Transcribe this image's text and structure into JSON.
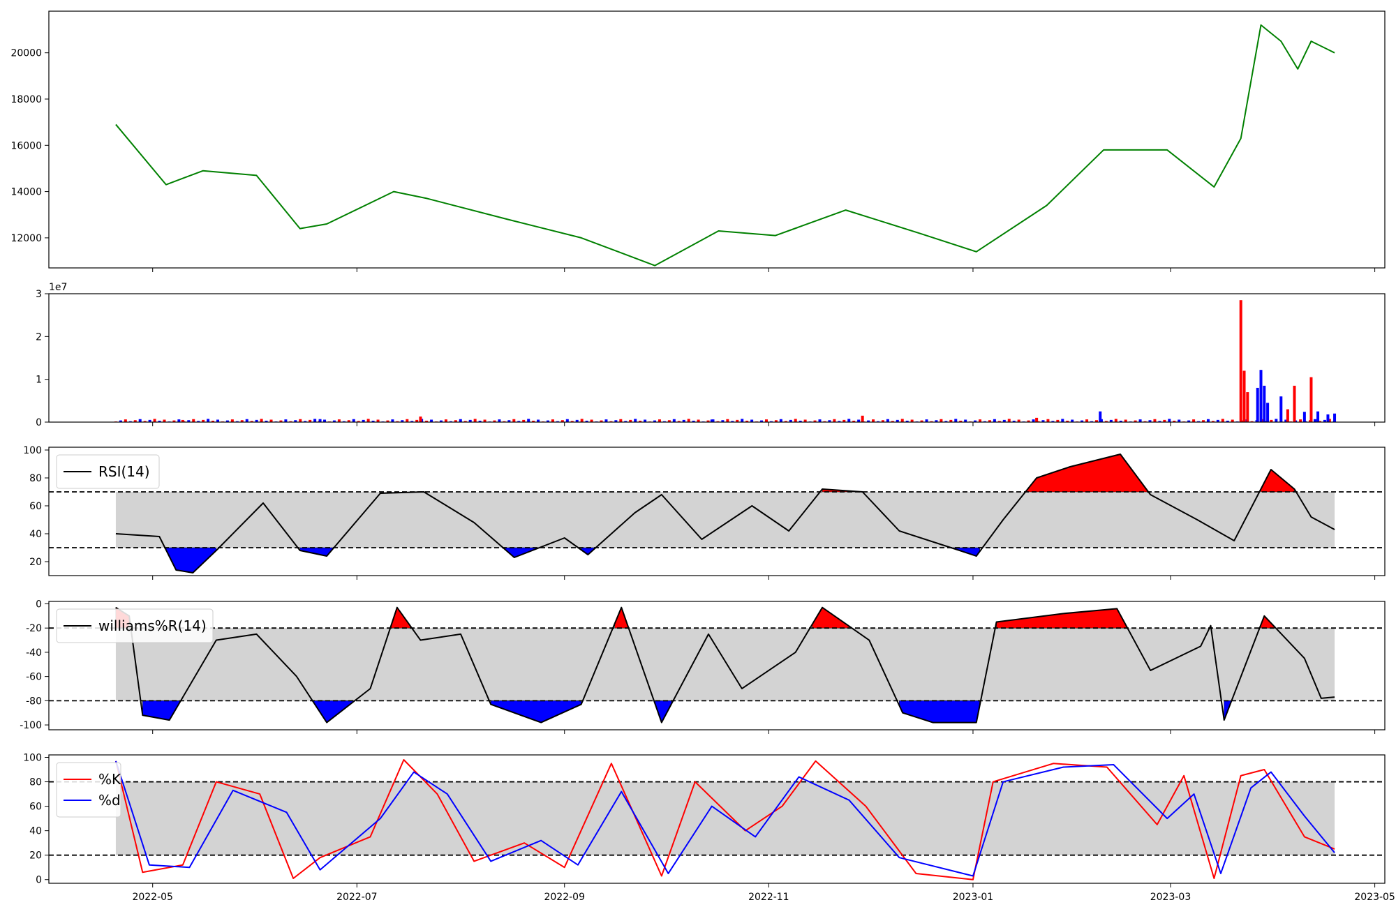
{
  "chart_data": [
    {
      "type": "line",
      "title": "",
      "xlabel": "",
      "ylabel": "",
      "ylim": [
        10700,
        21800
      ],
      "yticks": [
        12000,
        14000,
        16000,
        18000,
        20000
      ],
      "series": [
        {
          "color": "#008000",
          "x": [
            "2022-04-20",
            "2022-05-05",
            "2022-05-16",
            "2022-06-01",
            "2022-06-14",
            "2022-06-22",
            "2022-07-12",
            "2022-07-22",
            "2022-08-15",
            "2022-09-06",
            "2022-09-28",
            "2022-10-17",
            "2022-11-03",
            "2022-11-24",
            "2022-12-16",
            "2023-01-02",
            "2023-01-23",
            "2023-02-09",
            "2023-02-28",
            "2023-03-14",
            "2023-03-22",
            "2023-03-28",
            "2023-04-03",
            "2023-04-08",
            "2023-04-12",
            "2023-04-19"
          ],
          "values": [
            16900,
            14300,
            14900,
            14700,
            12400,
            12600,
            14000,
            13700,
            12800,
            12000,
            10800,
            12300,
            12100,
            13200,
            12200,
            11400,
            13400,
            15800,
            15800,
            14200,
            16300,
            21200,
            20500,
            19300,
            20500,
            20000
          ]
        }
      ]
    },
    {
      "type": "bar",
      "title": "",
      "xlabel": "",
      "ylabel": "",
      "offset_label": "1e7",
      "ylim": [
        0,
        30000000.0
      ],
      "yticks": [
        0,
        1,
        2,
        3
      ],
      "up_color": "#ff0000",
      "down_color": "#0000ff",
      "x": [
        "2022-05-10",
        "2022-06-20",
        "2022-07-20",
        "2022-10-15",
        "2022-11-29",
        "2023-01-20",
        "2023-02-08",
        "2023-03-22",
        "2023-03-23",
        "2023-03-24",
        "2023-03-27",
        "2023-03-28",
        "2023-03-29",
        "2023-03-30",
        "2023-04-03",
        "2023-04-05",
        "2023-04-07",
        "2023-04-10",
        "2023-04-12",
        "2023-04-14",
        "2023-04-17",
        "2023-04-19"
      ],
      "values": [
        500000,
        700000,
        1300000,
        600000,
        1500000,
        1000000,
        2500000,
        28500000,
        12000000,
        7000000,
        8000000,
        12200000,
        8500000,
        4500000,
        6000000,
        3000000,
        8500000,
        2400000,
        10500000,
        2500000,
        1800000,
        2000000
      ],
      "colors": [
        "red",
        "blue",
        "red",
        "blue",
        "red",
        "red",
        "blue",
        "red",
        "red",
        "red",
        "blue",
        "blue",
        "blue",
        "blue",
        "blue",
        "red",
        "red",
        "blue",
        "red",
        "blue",
        "blue",
        "blue"
      ]
    },
    {
      "type": "line",
      "title": "",
      "xlabel": "",
      "ylabel": "",
      "legend": [
        "RSI(14)"
      ],
      "legend_position": "upper-left",
      "ylim": [
        10,
        102
      ],
      "yticks": [
        20,
        40,
        60,
        80,
        100
      ],
      "thresholds": [
        30,
        70
      ],
      "series": [
        {
          "name": "RSI(14)",
          "color": "#000000",
          "x": [
            "2022-04-20",
            "2022-05-03",
            "2022-05-08",
            "2022-05-13",
            "2022-05-20",
            "2022-06-03",
            "2022-06-14",
            "2022-06-22",
            "2022-07-08",
            "2022-07-21",
            "2022-08-05",
            "2022-08-17",
            "2022-09-01",
            "2022-09-08",
            "2022-09-22",
            "2022-09-30",
            "2022-10-12",
            "2022-10-27",
            "2022-11-07",
            "2022-11-17",
            "2022-11-29",
            "2022-12-10",
            "2022-12-28",
            "2023-01-02",
            "2023-01-10",
            "2023-01-20",
            "2023-01-30",
            "2023-02-14",
            "2023-02-23",
            "2023-03-09",
            "2023-03-20",
            "2023-03-31",
            "2023-04-07",
            "2023-04-12",
            "2023-04-19"
          ],
          "values": [
            40,
            38,
            14,
            12,
            28,
            62,
            28,
            24,
            69,
            70,
            48,
            23,
            37,
            25,
            55,
            68,
            36,
            60,
            42,
            72,
            70,
            42,
            28,
            24,
            50,
            80,
            88,
            97,
            68,
            50,
            35,
            86,
            72,
            52,
            43
          ]
        }
      ]
    },
    {
      "type": "line",
      "title": "",
      "xlabel": "",
      "ylabel": "",
      "legend": [
        "williams%R(14)"
      ],
      "legend_position": "upper-left",
      "ylim": [
        -104,
        2
      ],
      "yticks": [
        -100,
        -80,
        -60,
        -40,
        -20,
        0
      ],
      "thresholds": [
        -20,
        -80
      ],
      "series": [
        {
          "name": "williams%R(14)",
          "color": "#000000",
          "x": [
            "2022-04-20",
            "2022-04-24",
            "2022-04-28",
            "2022-05-06",
            "2022-05-20",
            "2022-06-01",
            "2022-06-13",
            "2022-06-22",
            "2022-07-05",
            "2022-07-13",
            "2022-07-20",
            "2022-08-01",
            "2022-08-10",
            "2022-08-25",
            "2022-09-06",
            "2022-09-18",
            "2022-09-30",
            "2022-10-14",
            "2022-10-24",
            "2022-11-09",
            "2022-11-17",
            "2022-12-01",
            "2022-12-11",
            "2022-12-20",
            "2023-01-02",
            "2023-01-08",
            "2023-01-28",
            "2023-02-13",
            "2023-02-23",
            "2023-03-10",
            "2023-03-13",
            "2023-03-17",
            "2023-03-29",
            "2023-04-10",
            "2023-04-15",
            "2023-04-19"
          ],
          "values": [
            -3,
            -10,
            -92,
            -96,
            -30,
            -25,
            -60,
            -98,
            -70,
            -3,
            -30,
            -25,
            -83,
            -98,
            -83,
            -3,
            -98,
            -25,
            -70,
            -40,
            -3,
            -30,
            -90,
            -98,
            -98,
            -15,
            -8,
            -4,
            -55,
            -35,
            -18,
            -96,
            -10,
            -45,
            -78,
            -77
          ]
        }
      ]
    },
    {
      "type": "line",
      "title": "",
      "xlabel": "",
      "ylabel": "",
      "legend": [
        "%K",
        "%d"
      ],
      "legend_position": "upper-left",
      "ylim": [
        -3,
        102
      ],
      "yticks": [
        0,
        20,
        40,
        60,
        80,
        100
      ],
      "thresholds": [
        20,
        80
      ],
      "series": [
        {
          "name": "%K",
          "color": "#ff0000",
          "x": [
            "2022-04-20",
            "2022-04-28",
            "2022-05-10",
            "2022-05-20",
            "2022-06-02",
            "2022-06-12",
            "2022-06-20",
            "2022-07-05",
            "2022-07-15",
            "2022-07-25",
            "2022-08-05",
            "2022-08-20",
            "2022-09-01",
            "2022-09-15",
            "2022-09-30",
            "2022-10-10",
            "2022-10-25",
            "2022-11-05",
            "2022-11-15",
            "2022-11-30",
            "2022-12-15",
            "2023-01-01",
            "2023-01-07",
            "2023-01-25",
            "2023-02-10",
            "2023-02-25",
            "2023-03-05",
            "2023-03-14",
            "2023-03-22",
            "2023-03-29",
            "2023-04-10",
            "2023-04-19"
          ],
          "values": [
            97,
            6,
            12,
            80,
            70,
            1,
            18,
            35,
            98,
            70,
            15,
            30,
            10,
            95,
            3,
            80,
            40,
            60,
            97,
            60,
            5,
            0,
            80,
            95,
            92,
            45,
            85,
            1,
            85,
            90,
            35,
            25
          ]
        },
        {
          "name": "%d",
          "color": "#0000ff",
          "x": [
            "2022-04-20",
            "2022-04-30",
            "2022-05-12",
            "2022-05-25",
            "2022-06-10",
            "2022-06-20",
            "2022-07-08",
            "2022-07-18",
            "2022-07-28",
            "2022-08-10",
            "2022-08-25",
            "2022-09-05",
            "2022-09-18",
            "2022-10-02",
            "2022-10-15",
            "2022-10-28",
            "2022-11-10",
            "2022-11-25",
            "2022-12-10",
            "2023-01-01",
            "2023-01-10",
            "2023-01-28",
            "2023-02-12",
            "2023-02-28",
            "2023-03-08",
            "2023-03-16",
            "2023-03-25",
            "2023-03-31",
            "2023-04-10",
            "2023-04-19"
          ],
          "values": [
            97,
            12,
            10,
            73,
            55,
            8,
            50,
            88,
            70,
            15,
            32,
            12,
            72,
            5,
            60,
            35,
            84,
            65,
            18,
            3,
            80,
            92,
            94,
            50,
            70,
            5,
            75,
            88,
            52,
            22
          ]
        }
      ]
    }
  ],
  "x_axis": {
    "tick_labels": [
      "2022-05",
      "2022-07",
      "2022-09",
      "2022-11",
      "2023-01",
      "2023-03",
      "2023-05"
    ],
    "tick_dates": [
      "2022-05-01",
      "2022-07-01",
      "2022-09-01",
      "2022-11-01",
      "2023-01-01",
      "2023-03-01",
      "2023-05-01"
    ],
    "range": [
      "2022-03-31",
      "2023-05-04"
    ]
  },
  "colors": {
    "band_fill": "#d3d3d3",
    "overbought_fill": "#ff0000",
    "oversold_fill": "#0000ff",
    "axis": "#000000"
  }
}
